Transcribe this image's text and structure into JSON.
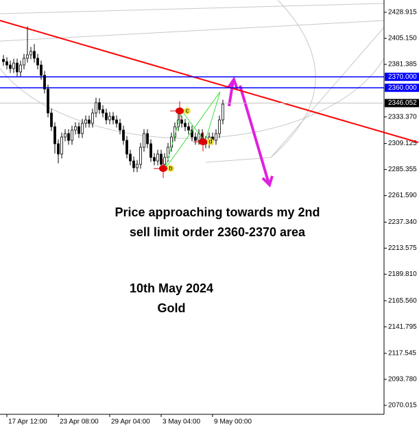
{
  "chart_data": {
    "type": "candlestick",
    "categories": [
      null,
      "17 Apr 12:00",
      null,
      null,
      null,
      null,
      null,
      null,
      null,
      null,
      null,
      null,
      null,
      null,
      null,
      null,
      "23 Apr 08:00",
      null,
      null,
      null,
      null,
      null,
      null,
      null,
      null,
      null,
      null,
      null,
      null,
      null,
      null,
      "29 Apr 04:00",
      null,
      null,
      null,
      null,
      null,
      null,
      null,
      null,
      null,
      null,
      null,
      null,
      null,
      null,
      "3 May 04:00",
      null,
      null,
      null,
      null,
      null,
      null,
      null,
      null,
      null,
      null,
      null,
      null,
      null,
      null,
      "9 May 00:00",
      null,
      null,
      null
    ],
    "open": [
      2386.0,
      2383.9,
      2380.8,
      2377.6,
      2382.6,
      2374.5,
      2380.8,
      2387.0,
      2390.1,
      2393.3,
      2387.0,
      2380.8,
      2371.4,
      2358.9,
      2337.0,
      2324.5,
      2308.9,
      2299.5,
      2315.1,
      2318.2,
      2312.0,
      2321.4,
      2324.5,
      2318.2,
      2327.6,
      2330.7,
      2327.6,
      2337.0,
      2346.4,
      2340.1,
      2337.0,
      2330.7,
      2333.9,
      2330.7,
      2327.6,
      2321.4,
      2312.0,
      2299.5,
      2293.2,
      2287.0,
      2290.1,
      2305.7,
      2318.2,
      2308.9,
      2296.4,
      2293.2,
      2299.5,
      2290.1,
      2296.4,
      2305.7,
      2315.1,
      2324.5,
      2330.7,
      2327.6,
      2324.5,
      2321.4,
      2315.1,
      2312.0,
      2318.2,
      2312.0,
      2308.9,
      2315.1,
      2312.0,
      2318.2,
      2330.7
    ],
    "high": [
      2390.0,
      2387.9,
      2384.8,
      2386.6,
      2386.6,
      2384.8,
      2391.0,
      2416.0,
      2397.3,
      2400.0,
      2391.0,
      2384.8,
      2375.4,
      2362.9,
      2341.0,
      2328.5,
      2312.9,
      2319.1,
      2322.2,
      2322.2,
      2325.4,
      2328.5,
      2328.5,
      2331.6,
      2334.7,
      2334.7,
      2341.0,
      2351.0,
      2350.4,
      2344.1,
      2341.0,
      2337.9,
      2337.9,
      2334.7,
      2331.6,
      2325.4,
      2316.0,
      2303.5,
      2297.2,
      2294.1,
      2309.7,
      2322.2,
      2322.2,
      2312.9,
      2300.4,
      2303.5,
      2303.5,
      2300.4,
      2309.7,
      2319.1,
      2328.5,
      2336.0,
      2334.7,
      2331.6,
      2328.5,
      2325.4,
      2319.1,
      2322.2,
      2322.2,
      2316.0,
      2319.1,
      2319.1,
      2322.2,
      2334.7,
      2349.1
    ],
    "low": [
      2380.0,
      2376.8,
      2373.6,
      2373.6,
      2370.5,
      2370.5,
      2376.8,
      2383.0,
      2386.1,
      2383.0,
      2376.8,
      2367.4,
      2354.9,
      2333.0,
      2320.5,
      2300.0,
      2291.0,
      2295.5,
      2311.1,
      2308.0,
      2308.0,
      2317.4,
      2314.2,
      2314.2,
      2323.6,
      2323.6,
      2323.6,
      2333.0,
      2336.1,
      2333.0,
      2326.7,
      2326.7,
      2326.7,
      2323.6,
      2317.4,
      2308.0,
      2295.5,
      2289.2,
      2283.0,
      2283.0,
      2286.1,
      2301.7,
      2304.9,
      2292.4,
      2289.2,
      2289.2,
      2285.0,
      2286.1,
      2292.4,
      2301.7,
      2311.1,
      2320.5,
      2323.6,
      2320.5,
      2317.4,
      2311.1,
      2308.0,
      2308.0,
      2308.0,
      2304.9,
      2304.9,
      2308.0,
      2308.0,
      2314.2,
      2326.7
    ],
    "close": [
      2383.9,
      2380.8,
      2377.6,
      2382.6,
      2374.5,
      2380.8,
      2387.0,
      2390.1,
      2393.3,
      2387.0,
      2380.8,
      2371.4,
      2358.9,
      2337.0,
      2324.5,
      2308.9,
      2299.5,
      2315.1,
      2318.2,
      2312.0,
      2321.4,
      2324.5,
      2318.2,
      2327.6,
      2330.7,
      2327.6,
      2337.0,
      2346.4,
      2340.1,
      2337.0,
      2330.7,
      2333.9,
      2330.7,
      2327.6,
      2321.4,
      2312.0,
      2299.5,
      2293.2,
      2287.0,
      2290.1,
      2305.7,
      2318.2,
      2308.9,
      2296.4,
      2293.2,
      2299.5,
      2290.1,
      2296.4,
      2305.7,
      2315.1,
      2324.5,
      2330.7,
      2327.6,
      2324.5,
      2321.4,
      2315.1,
      2312.0,
      2318.2,
      2312.0,
      2308.9,
      2315.1,
      2312.0,
      2318.2,
      2330.7,
      2345.1
    ],
    "up_color": "#ffffff",
    "down_color": "#000000",
    "ylim": [
      2061.86,
      2440.17
    ],
    "yticks": [
      {
        "value": 2428.915,
        "label": "2428.915"
      },
      {
        "value": 2405.15,
        "label": "2405.150"
      },
      {
        "value": 2381.385,
        "label": "2381.385"
      },
      {
        "value": 2333.37,
        "label": "2333.370"
      },
      {
        "value": 2309.125,
        "label": "2309.125"
      },
      {
        "value": 2285.355,
        "label": "2285.355"
      },
      {
        "value": 2261.59,
        "label": "2261.590"
      },
      {
        "value": 2237.34,
        "label": "2237.340"
      },
      {
        "value": 2213.575,
        "label": "2213.575"
      },
      {
        "value": 2189.81,
        "label": "2189.810"
      },
      {
        "value": 2165.56,
        "label": "2165.560"
      },
      {
        "value": 2141.795,
        "label": "2141.795"
      },
      {
        "value": 2117.545,
        "label": "2117.545"
      },
      {
        "value": 2093.78,
        "label": "2093.780"
      },
      {
        "value": 2070.015,
        "label": "2070.015"
      }
    ],
    "levels": [
      {
        "value": 2370,
        "label": "2370.000",
        "color": "#0000ff"
      },
      {
        "value": 2360,
        "label": "2360.000",
        "color": "#0000ff"
      },
      {
        "value": 2346.052,
        "label": "2346.052",
        "color": "#c0c0c0"
      }
    ],
    "trendline": {
      "x": [
        -1,
        121
      ],
      "y": [
        2421.4,
        2310.1
      ],
      "color": "#ff0000"
    },
    "pattern": {
      "labels": [
        "b",
        "c",
        "d"
      ],
      "x": [
        47.2,
        52,
        58.8
      ],
      "y": [
        2286.3,
        2338.9,
        2310.7
      ]
    },
    "annotations": [
      [
        "Price approaching towards my 2nd",
        "sell limit order 2360-2370 area"
      ],
      [
        "10th May 2024",
        "Gold"
      ]
    ]
  }
}
